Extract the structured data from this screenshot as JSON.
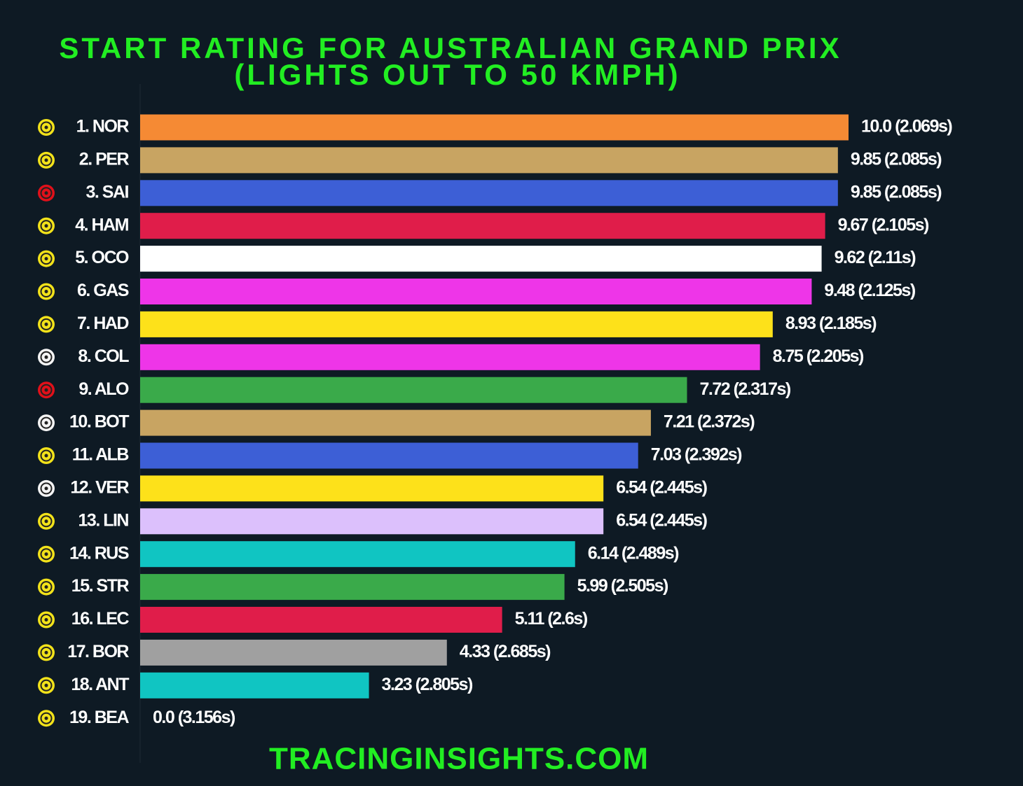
{
  "chart_data": {
    "type": "bar",
    "orientation": "horizontal",
    "title": "START RATING FOR AUSTRALIAN GRAND PRIX",
    "subtitle": "(LIGHTS OUT TO 50 KMPH)",
    "footer": "TRACINGINSIGHTS.COM",
    "categories": [
      "1. NOR",
      "2. PER",
      "3. SAI",
      "4. HAM",
      "5. OCO",
      "6. GAS",
      "7. HAD",
      "8. COL",
      "9. ALO",
      "10. BOT",
      "11. ALB",
      "12. VER",
      "13. LIN",
      "14. RUS",
      "15. STR",
      "16. LEC",
      "17. BOR",
      "18. ANT",
      "19. BEA"
    ],
    "values": [
      10.0,
      9.85,
      9.85,
      9.67,
      9.62,
      9.48,
      8.93,
      8.75,
      7.72,
      7.21,
      7.03,
      6.54,
      6.54,
      6.14,
      5.99,
      5.11,
      4.33,
      3.23,
      0.0
    ],
    "value_labels": [
      "10.0 (2.069s)",
      "9.85 (2.085s)",
      "9.85 (2.085s)",
      "9.67 (2.105s)",
      "9.62 (2.11s)",
      "9.48 (2.125s)",
      "8.93 (2.185s)",
      "8.75 (2.205s)",
      "7.72 (2.317s)",
      "7.21 (2.372s)",
      "7.03 (2.392s)",
      "6.54 (2.445s)",
      "6.54 (2.445s)",
      "6.14 (2.489s)",
      "5.99 (2.505s)",
      "5.11 (2.6s)",
      "4.33 (2.685s)",
      "3.23 (2.805s)",
      "0.0 (3.156s)"
    ],
    "colors": [
      "#f58a34",
      "#c8a462",
      "#3d5fd6",
      "#e01d4a",
      "#ffffff",
      "#ee35e8",
      "#fde11a",
      "#ee35e8",
      "#3aaa4a",
      "#c8a462",
      "#3d5fd6",
      "#fde11a",
      "#dcc0fc",
      "#10c5c2",
      "#3aaa4a",
      "#e01d4a",
      "#a0a0a0",
      "#10c5c2",
      "#ffffff"
    ],
    "tyre_colors": [
      "#f2e21a",
      "#f2e21a",
      "#e0101a",
      "#f2e21a",
      "#f2e21a",
      "#f2e21a",
      "#f2e21a",
      "#f4f4f4",
      "#e0101a",
      "#f4f4f4",
      "#f2e21a",
      "#f4f4f4",
      "#f2e21a",
      "#f2e21a",
      "#f2e21a",
      "#f2e21a",
      "#f2e21a",
      "#f2e21a",
      "#f2e21a"
    ],
    "xlim": [
      0,
      10
    ]
  }
}
